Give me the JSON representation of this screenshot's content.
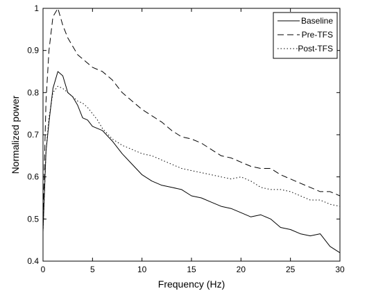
{
  "chart_data": {
    "type": "line",
    "title": "",
    "xlabel": "Frequency (Hz)",
    "ylabel": "Normalized power",
    "xlim": [
      0,
      30
    ],
    "ylim": [
      0.4,
      1.0
    ],
    "xticks": [
      0,
      5,
      10,
      15,
      20,
      25,
      30
    ],
    "yticks": [
      0.4,
      0.5,
      0.6,
      0.7,
      0.8,
      0.9,
      1.0
    ],
    "xtick_labels": [
      "0",
      "5",
      "10",
      "15",
      "20",
      "25",
      "30"
    ],
    "ytick_labels": [
      "0.4",
      "0.5",
      "0.6",
      "0.7",
      "0.8",
      "0.9",
      "1"
    ],
    "grid": false,
    "legend_position": "top-right",
    "series": [
      {
        "name": "Baseline",
        "style": "solid",
        "color": "#000000",
        "x": [
          0,
          0.3,
          0.6,
          1.0,
          1.5,
          2.0,
          2.5,
          3.0,
          3.5,
          4.0,
          4.5,
          5.0,
          5.5,
          6.0,
          7.0,
          8.0,
          9.0,
          10.0,
          11.0,
          12.0,
          13.0,
          14.0,
          15.0,
          16.0,
          17.0,
          18.0,
          19.0,
          20.0,
          21.0,
          22.0,
          23.0,
          24.0,
          25.0,
          26.0,
          27.0,
          28.0,
          29.0,
          30.0
        ],
        "y": [
          0.47,
          0.66,
          0.73,
          0.81,
          0.85,
          0.84,
          0.8,
          0.79,
          0.77,
          0.74,
          0.735,
          0.72,
          0.715,
          0.71,
          0.685,
          0.655,
          0.63,
          0.605,
          0.59,
          0.58,
          0.575,
          0.57,
          0.555,
          0.55,
          0.54,
          0.53,
          0.525,
          0.515,
          0.505,
          0.51,
          0.5,
          0.48,
          0.475,
          0.465,
          0.46,
          0.465,
          0.435,
          0.42
        ]
      },
      {
        "name": "Pre-TFS",
        "style": "dashed",
        "color": "#000000",
        "x": [
          0,
          0.3,
          0.6,
          1.0,
          1.5,
          2.0,
          2.5,
          3.0,
          3.5,
          4.0,
          4.5,
          5.0,
          5.5,
          6.0,
          7.0,
          8.0,
          9.0,
          10.0,
          11.0,
          12.0,
          13.0,
          14.0,
          15.0,
          16.0,
          17.0,
          18.0,
          19.0,
          20.0,
          21.0,
          22.0,
          23.0,
          24.0,
          25.0,
          26.0,
          27.0,
          28.0,
          29.0,
          30.0
        ],
        "y": [
          0.5,
          0.78,
          0.9,
          0.98,
          1.0,
          0.96,
          0.93,
          0.91,
          0.89,
          0.88,
          0.87,
          0.86,
          0.855,
          0.85,
          0.83,
          0.8,
          0.78,
          0.76,
          0.745,
          0.73,
          0.71,
          0.695,
          0.69,
          0.68,
          0.665,
          0.65,
          0.645,
          0.635,
          0.625,
          0.62,
          0.62,
          0.605,
          0.595,
          0.585,
          0.575,
          0.565,
          0.565,
          0.555
        ]
      },
      {
        "name": "Post-TFS",
        "style": "dotted",
        "color": "#000000",
        "x": [
          0,
          0.3,
          0.6,
          1.0,
          1.5,
          2.0,
          2.5,
          3.0,
          3.5,
          4.0,
          4.5,
          5.0,
          5.5,
          6.0,
          7.0,
          8.0,
          9.0,
          10.0,
          11.0,
          12.0,
          13.0,
          14.0,
          15.0,
          16.0,
          17.0,
          18.0,
          19.0,
          20.0,
          21.0,
          22.0,
          23.0,
          24.0,
          25.0,
          26.0,
          27.0,
          28.0,
          29.0,
          30.0
        ],
        "y": [
          0.47,
          0.66,
          0.74,
          0.8,
          0.815,
          0.81,
          0.8,
          0.79,
          0.78,
          0.775,
          0.765,
          0.75,
          0.735,
          0.715,
          0.69,
          0.675,
          0.665,
          0.655,
          0.65,
          0.64,
          0.63,
          0.62,
          0.615,
          0.61,
          0.605,
          0.6,
          0.595,
          0.6,
          0.59,
          0.575,
          0.57,
          0.57,
          0.565,
          0.555,
          0.545,
          0.545,
          0.535,
          0.53
        ]
      }
    ]
  }
}
